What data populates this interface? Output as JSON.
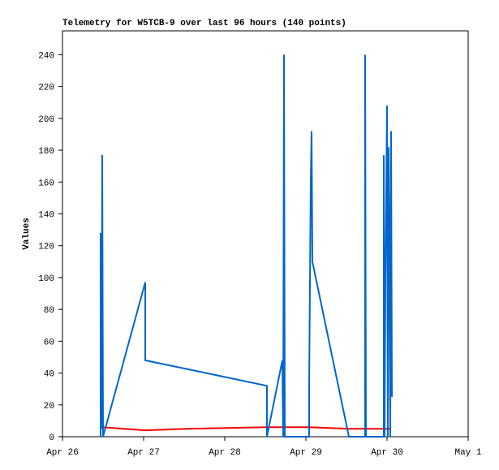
{
  "chart_data": {
    "type": "line",
    "title": "Telemetry for W5TCB-9 over last 96 hours (140 points)",
    "y_label": "Values",
    "xlim": [
      0,
      5
    ],
    "xticks": [
      {
        "value": 0,
        "label": "Apr 26"
      },
      {
        "value": 1,
        "label": "Apr 27"
      },
      {
        "value": 2,
        "label": "Apr 28"
      },
      {
        "value": 3,
        "label": "Apr 29"
      },
      {
        "value": 4,
        "label": "Apr 30"
      },
      {
        "value": 5,
        "label": "May 1"
      }
    ],
    "ylim": [
      0,
      255
    ],
    "yticks": [
      0,
      20,
      40,
      60,
      80,
      100,
      120,
      140,
      160,
      180,
      200,
      220,
      240
    ],
    "grid": false,
    "series": [
      {
        "color": "#ff0000",
        "x": [
          0.48,
          1.02,
          1.53,
          2.53,
          3.03,
          3.53,
          4.03
        ],
        "values": [
          6,
          4,
          5,
          6,
          6,
          5,
          5
        ]
      },
      {
        "color": "#0066cc",
        "x": [
          0.47,
          0.47,
          0.48,
          0.49,
          0.5,
          1.02,
          1.02,
          2.52,
          2.52,
          2.71,
          2.72,
          2.73,
          2.74,
          3.04,
          3.04,
          3.06,
          3.07,
          3.08,
          3.53,
          3.73,
          3.73,
          3.74,
          3.96,
          3.96,
          3.97,
          3.98,
          4.0,
          4.01,
          4.02,
          4.03,
          4.04,
          4.05,
          4.06
        ],
        "values": [
          0,
          128,
          5,
          177,
          0,
          97,
          48,
          32,
          0,
          48,
          0,
          240,
          0,
          0,
          32,
          160,
          192,
          110,
          0,
          0,
          240,
          0,
          0,
          177,
          0,
          96,
          208,
          0,
          182,
          130,
          0,
          192,
          25
        ]
      }
    ]
  }
}
